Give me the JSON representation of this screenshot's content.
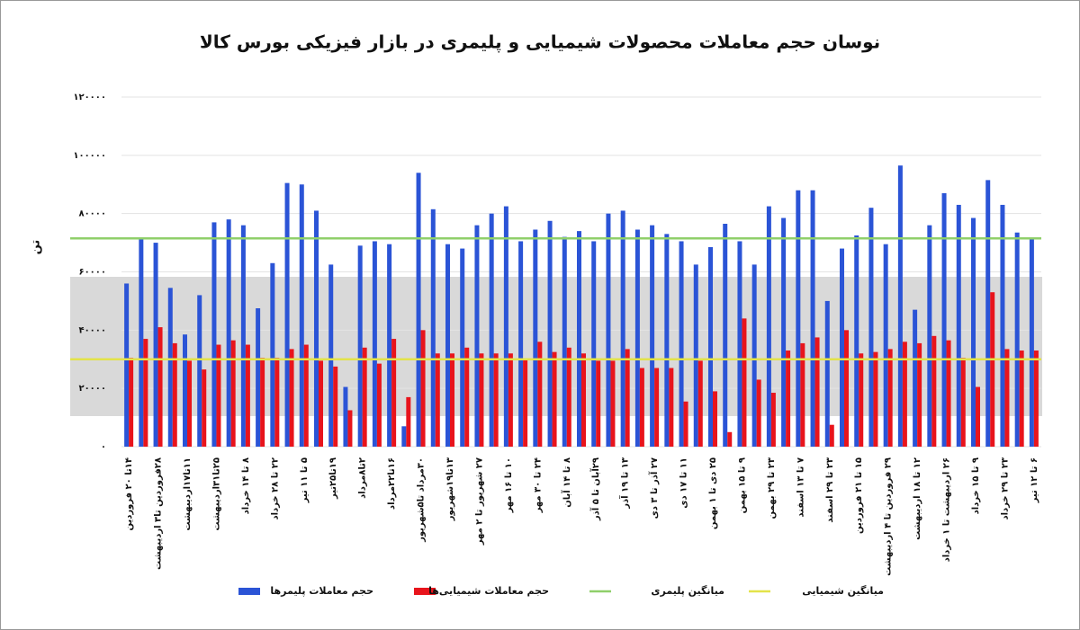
{
  "chart_data": {
    "type": "bar",
    "title": "نوسان حجم معاملات محصولات شیمیایی و پلیمری در بازار فیزیکی بورس کالا",
    "y_label": "تن",
    "categories": [
      "۱۴تا ۲۰ فروردین",
      null,
      "۲۸فروردین تا۳ اردیبهشت",
      null,
      "۱۱تا۱۷اردیبهشت",
      null,
      "۲۵تا۳۱اردیبهشت",
      null,
      "۸ تا ۱۴ خرداد",
      null,
      "۲۲ تا ۲۸ خرداد",
      null,
      "۵ تا ۱۱ تیر",
      null,
      "۱۹تا۲۵تیر",
      null,
      "۲تا۸مرداد",
      null,
      "۱۶تا۲۲مرداد",
      null,
      "۳۰مرداد تا۵شهریور",
      null,
      "۱۳تا۱۹شهریور",
      null,
      "۲۷ شهریور تا ۲ مهر",
      null,
      "۱۰ تا ۱۶ مهر",
      null,
      "۲۴ تا ۳۰ مهر",
      null,
      "۸ تا ۱۴ آبان",
      null,
      "۲۹آبان تا ۵ آذر",
      null,
      "۱۳ تا ۱۹ آذر",
      null,
      "۲۷ آذر تا ۳ دی",
      null,
      "۱۱ تا ۱۷ دی",
      null,
      "۲۵ دی تا ۱ بهمن",
      null,
      "۹ تا ۱۵ بهمن",
      null,
      "۲۳ تا ۲۹ بهمن",
      null,
      "۷ تا ۱۳ اسفند",
      null,
      "۲۳ تا ۲۹ اسفند",
      null,
      "۱۵ تا ۲۱ فروردین",
      null,
      "۲۹ فروردین تا ۴ اردیبهشت",
      null,
      "۱۲ تا ۱۸ اردیبهشت",
      null,
      "۲۶ اردیبهشت تا ۱ خرداد",
      null,
      "۹ تا ۱۵ خرداد",
      null,
      "۲۳ تا ۲۹ خرداد",
      null,
      "۶ تا ۱۲ تیر"
    ],
    "series": [
      {
        "name": "حجم معاملات پلیمرها",
        "color": "#2b54d6",
        "values": [
          56000,
          71500,
          70000,
          54500,
          38500,
          52000,
          77000,
          78000,
          76000,
          47500,
          63000,
          90500,
          90000,
          81000,
          62500,
          20500,
          69000,
          70500,
          69500,
          7000,
          94000,
          81500,
          69500,
          68000,
          76000,
          80000,
          82500,
          70500,
          74500,
          77500,
          72000,
          74000,
          70500,
          80000,
          81000,
          74500,
          76000,
          73000,
          70500,
          62500,
          68500,
          76500,
          70500,
          62500,
          82500,
          78500,
          88000,
          88000,
          50000,
          68000,
          72500,
          82000,
          69500,
          96500,
          47000,
          76000,
          87000,
          83000,
          78500,
          91500,
          83000,
          73500,
          71500
        ]
      },
      {
        "name": "حجم معاملات شیمیایی‌ها",
        "color": "#e8141c",
        "values": [
          30500,
          37000,
          41000,
          35500,
          29500,
          26500,
          35000,
          36500,
          35000,
          30500,
          30500,
          33500,
          35000,
          29500,
          27500,
          12500,
          34000,
          28500,
          37000,
          17000,
          40000,
          32000,
          32000,
          34000,
          32000,
          32000,
          32000,
          30000,
          36000,
          32500,
          34000,
          32000,
          29500,
          29500,
          33500,
          27000,
          27000,
          27000,
          15500,
          29500,
          19000,
          5000,
          44000,
          23000,
          18500,
          33000,
          35500,
          37500,
          7500,
          40000,
          32000,
          32500,
          33500,
          36000,
          35500,
          38000,
          36500,
          30500,
          20500,
          53000,
          33500,
          33000,
          33000
        ]
      }
    ],
    "reference_lines": [
      {
        "name": "میانگین پلیمری",
        "color": "#8fcf6a",
        "value": 71500
      },
      {
        "name": "میانگین شیمیایی",
        "color": "#e3e34a",
        "value": 30000
      }
    ],
    "ylim": [
      0,
      120000
    ],
    "yticks": [
      {
        "value": 0,
        "label": "۰"
      },
      {
        "value": 20000,
        "label": "۲۰۰۰۰"
      },
      {
        "value": 40000,
        "label": "۴۰۰۰۰"
      },
      {
        "value": 60000,
        "label": "۶۰۰۰۰"
      },
      {
        "value": 80000,
        "label": "۸۰۰۰۰"
      },
      {
        "value": 100000,
        "label": "۱۰۰۰۰۰"
      },
      {
        "value": 120000,
        "label": "۱۲۰۰۰۰"
      }
    ],
    "grid": true
  }
}
